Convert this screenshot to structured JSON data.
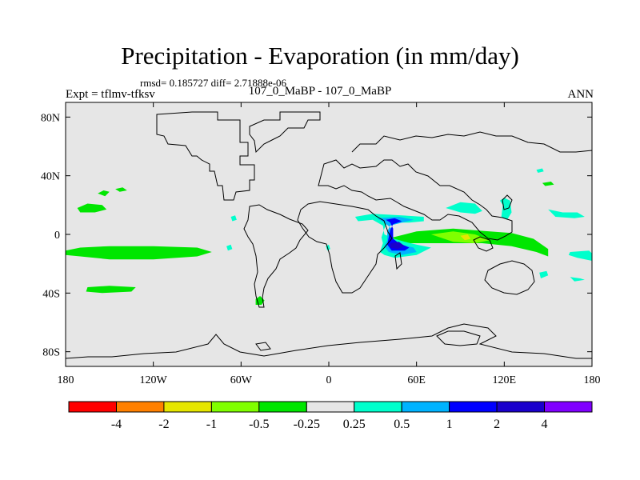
{
  "header": {
    "title": "Precipitation - Evaporation (in mm/day)",
    "stats": "rmsd= 0.185727 diff= 2.71888e-06",
    "expt": "Expt = tflmv-tfksv",
    "runs": "107_0_MaBP - 107_0_MaBP",
    "season": "ANN"
  },
  "chart_data": {
    "type": "heatmap",
    "title": "Precipitation - Evaporation (in mm/day)",
    "xlabel": "",
    "ylabel": "",
    "xlim": [
      -180,
      180
    ],
    "ylim": [
      -90,
      90
    ],
    "x_ticks": [
      {
        "v": -180,
        "label": "180"
      },
      {
        "v": -120,
        "label": "120W"
      },
      {
        "v": -60,
        "label": "60W"
      },
      {
        "v": 0,
        "label": "0"
      },
      {
        "v": 60,
        "label": "60E"
      },
      {
        "v": 120,
        "label": "120E"
      },
      {
        "v": 180,
        "label": "180"
      }
    ],
    "y_ticks": [
      {
        "v": 80,
        "label": "80N"
      },
      {
        "v": 40,
        "label": "40N"
      },
      {
        "v": 0,
        "label": "0"
      },
      {
        "v": -40,
        "label": "40S"
      },
      {
        "v": -80,
        "label": "80S"
      }
    ],
    "background_color": "#e6e6e6",
    "coastline_color": "#000000",
    "colorbar": {
      "levels": [
        "-4",
        "-2",
        "-1",
        "-0.5",
        "-0.25",
        "0.25",
        "0.5",
        "1",
        "2",
        "4"
      ],
      "colors": [
        "#ff0000",
        "#ff8000",
        "#e6e600",
        "#80ff00",
        "#00e600",
        "#e6e6e6",
        "#00ffcc",
        "#00b3ff",
        "#0000ff",
        "#1a00cc",
        "#8000ff"
      ]
    },
    "features": [
      {
        "name": "tropical-atlantic-pacific-band",
        "value_class": 4,
        "color": "#00e600",
        "points": [
          [
            -180,
            -11
          ],
          [
            -170,
            -9
          ],
          [
            -150,
            -8
          ],
          [
            -120,
            -8
          ],
          [
            -90,
            -9
          ],
          [
            -80,
            -12
          ],
          [
            -90,
            -15
          ],
          [
            -120,
            -17
          ],
          [
            -150,
            -17
          ],
          [
            -170,
            -15
          ],
          [
            -180,
            -14
          ]
        ]
      },
      {
        "name": "north-pacific-patch",
        "value_class": 4,
        "color": "#00e600",
        "points": [
          [
            -172,
            18
          ],
          [
            -165,
            21
          ],
          [
            -155,
            20
          ],
          [
            -152,
            17
          ],
          [
            -160,
            15
          ],
          [
            -170,
            15
          ]
        ]
      },
      {
        "name": "north-pacific-patch-2",
        "value_class": 4,
        "color": "#00e600",
        "points": [
          [
            -158,
            28
          ],
          [
            -154,
            30
          ],
          [
            -150,
            29
          ],
          [
            -153,
            26
          ]
        ]
      },
      {
        "name": "north-pacific-patch-3",
        "value_class": 4,
        "color": "#00e600",
        "points": [
          [
            -146,
            31
          ],
          [
            -141,
            32
          ],
          [
            -138,
            30
          ],
          [
            -143,
            29
          ]
        ]
      },
      {
        "name": "south-pacific-streak",
        "value_class": 4,
        "color": "#00e600",
        "points": [
          [
            -165,
            -36
          ],
          [
            -150,
            -35
          ],
          [
            -132,
            -36
          ],
          [
            -135,
            -39
          ],
          [
            -155,
            -40
          ],
          [
            -166,
            -39
          ]
        ]
      },
      {
        "name": "south-atlantic-patch",
        "value_class": 4,
        "color": "#00e600",
        "points": [
          [
            -50,
            -44
          ],
          [
            -47,
            -42
          ],
          [
            -44,
            -45
          ],
          [
            -46,
            -48
          ],
          [
            -50,
            -48
          ]
        ]
      },
      {
        "name": "indian-ocean-band",
        "value_class": 4,
        "color": "#00e600",
        "points": [
          [
            40,
            -3
          ],
          [
            60,
            2
          ],
          [
            85,
            4
          ],
          [
            110,
            2
          ],
          [
            125,
            1
          ],
          [
            140,
            -3
          ],
          [
            150,
            -10
          ],
          [
            150,
            -15
          ],
          [
            142,
            -12
          ],
          [
            125,
            -8
          ],
          [
            105,
            -6
          ],
          [
            80,
            -6
          ],
          [
            60,
            -6
          ],
          [
            45,
            -6
          ]
        ]
      },
      {
        "name": "indian-ocean-band-core",
        "value_class": 3,
        "color": "#80ff00",
        "points": [
          [
            70,
            0
          ],
          [
            85,
            2
          ],
          [
            100,
            0
          ],
          [
            110,
            -4
          ],
          [
            100,
            -6
          ],
          [
            85,
            -5
          ]
        ]
      },
      {
        "name": "indian-ocean-band-peak",
        "value_class": 2,
        "color": "#e6e600",
        "points": [
          [
            90,
            -1
          ],
          [
            95,
            0
          ],
          [
            97,
            -3
          ],
          [
            93,
            -4
          ]
        ]
      },
      {
        "name": "arabia-moist-region",
        "value_class": 6,
        "color": "#00ffcc",
        "points": [
          [
            18,
            12
          ],
          [
            30,
            14
          ],
          [
            50,
            13
          ],
          [
            65,
            12
          ],
          [
            65,
            9
          ],
          [
            55,
            8
          ],
          [
            40,
            8
          ],
          [
            38,
            4
          ],
          [
            36,
            -2
          ],
          [
            37,
            -6
          ],
          [
            35,
            -12
          ],
          [
            38,
            -14
          ],
          [
            45,
            -16
          ],
          [
            60,
            -14
          ],
          [
            70,
            -9
          ],
          [
            60,
            -7
          ],
          [
            52,
            -5
          ],
          [
            45,
            -3
          ],
          [
            38,
            0
          ],
          [
            37,
            6
          ],
          [
            30,
            10
          ],
          [
            20,
            9
          ]
        ]
      },
      {
        "name": "arabia-moist-mid",
        "value_class": 7,
        "color": "#00b3ff",
        "points": [
          [
            33,
            11
          ],
          [
            48,
            12
          ],
          [
            58,
            10
          ],
          [
            50,
            8
          ],
          [
            42,
            6
          ],
          [
            40,
            2
          ],
          [
            40,
            -4
          ],
          [
            38,
            -8
          ],
          [
            41,
            -12
          ],
          [
            50,
            -14
          ],
          [
            60,
            -12
          ],
          [
            58,
            -9
          ],
          [
            50,
            -7
          ],
          [
            42,
            -4
          ],
          [
            43,
            4
          ],
          [
            38,
            8
          ]
        ]
      },
      {
        "name": "arabia-moist-high",
        "value_class": 8,
        "color": "#0000ff",
        "points": [
          [
            39,
            10
          ],
          [
            45,
            11
          ],
          [
            50,
            9
          ],
          [
            44,
            7
          ],
          [
            42,
            3
          ],
          [
            41,
            -2
          ],
          [
            40,
            -7
          ],
          [
            43,
            -11
          ],
          [
            52,
            -11
          ],
          [
            55,
            -9
          ],
          [
            48,
            -6
          ],
          [
            44,
            -3
          ],
          [
            44,
            4
          ],
          [
            42,
            8
          ]
        ]
      },
      {
        "name": "arabia-moist-peak",
        "value_class": 9,
        "color": "#1a00cc",
        "points": [
          [
            42,
            -6
          ],
          [
            48,
            -5
          ],
          [
            52,
            -8
          ],
          [
            47,
            -10
          ],
          [
            42,
            -9
          ]
        ]
      },
      {
        "name": "east-asia-patch",
        "value_class": 6,
        "color": "#00ffcc",
        "points": [
          [
            80,
            18
          ],
          [
            90,
            22
          ],
          [
            100,
            21
          ],
          [
            105,
            16
          ],
          [
            100,
            14
          ],
          [
            90,
            15
          ]
        ]
      },
      {
        "name": "japan-patch",
        "value_class": 6,
        "color": "#00ffcc",
        "points": [
          [
            117,
            23
          ],
          [
            120,
            25
          ],
          [
            124,
            23
          ],
          [
            125,
            15
          ],
          [
            122,
            10
          ],
          [
            118,
            12
          ],
          [
            119,
            20
          ]
        ]
      },
      {
        "name": "north-pacific-blue",
        "value_class": 6,
        "color": "#00ffcc",
        "points": [
          [
            150,
            17
          ],
          [
            160,
            15
          ],
          [
            170,
            15
          ],
          [
            175,
            12
          ],
          [
            168,
            11
          ],
          [
            155,
            12
          ]
        ]
      },
      {
        "name": "south-pacific-blue",
        "value_class": 6,
        "color": "#00ffcc",
        "points": [
          [
            165,
            -12
          ],
          [
            178,
            -11
          ],
          [
            180,
            -13
          ],
          [
            180,
            -18
          ],
          [
            170,
            -16
          ],
          [
            164,
            -14
          ]
        ]
      },
      {
        "name": "south-pacific-blue-2",
        "value_class": 6,
        "color": "#00ffcc",
        "points": [
          [
            165,
            -29
          ],
          [
            172,
            -30
          ],
          [
            175,
            -31
          ],
          [
            168,
            -32
          ]
        ]
      },
      {
        "name": "southern-blue-3",
        "value_class": 6,
        "color": "#00ffcc",
        "points": [
          [
            144,
            -26
          ],
          [
            149,
            -25
          ],
          [
            150,
            -28
          ],
          [
            145,
            -30
          ]
        ]
      },
      {
        "name": "north-atlantic-blue",
        "value_class": 6,
        "color": "#00ffcc",
        "points": [
          [
            142,
            44
          ],
          [
            146,
            45
          ],
          [
            147,
            43
          ],
          [
            143,
            42
          ]
        ]
      },
      {
        "name": "north-pacific-green",
        "value_class": 4,
        "color": "#00e600",
        "points": [
          [
            146,
            35
          ],
          [
            152,
            36
          ],
          [
            154,
            34
          ],
          [
            148,
            33
          ]
        ]
      },
      {
        "name": "tropical-pacific-blue",
        "value_class": 6,
        "color": "#00ffcc",
        "points": [
          [
            -70,
            -8
          ],
          [
            -67,
            -7
          ],
          [
            -66,
            -10
          ],
          [
            -69,
            -11
          ]
        ]
      },
      {
        "name": "atlantic-cyan-dot",
        "value_class": 6,
        "color": "#00ffcc",
        "points": [
          [
            -2,
            -8
          ],
          [
            0,
            -7
          ],
          [
            1,
            -10
          ],
          [
            -1,
            -11
          ]
        ]
      },
      {
        "name": "pacific-cyan-dot",
        "value_class": 6,
        "color": "#00ffcc",
        "points": [
          [
            -67,
            12
          ],
          [
            -64,
            13
          ],
          [
            -63,
            10
          ],
          [
            -66,
            9
          ]
        ]
      }
    ]
  }
}
